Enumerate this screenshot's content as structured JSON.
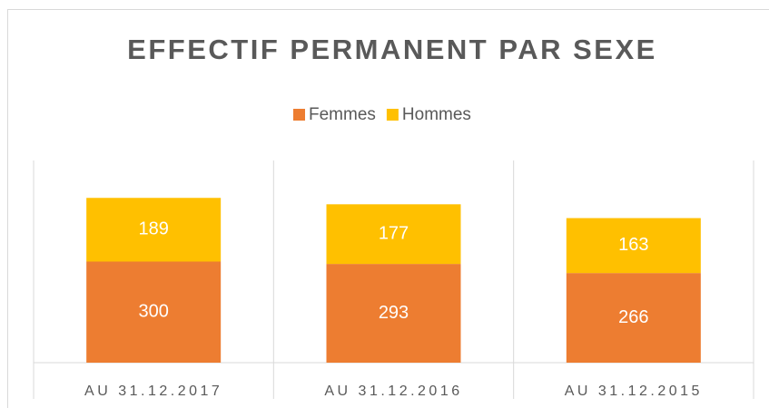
{
  "chart_data": {
    "type": "stacked_bar",
    "title": "EFFECTIF PERMANENT PAR SEXE",
    "categories": [
      "AU 31.12.2017",
      "AU 31.12.2016",
      "AU 31.12.2015"
    ],
    "series": [
      {
        "name": "Femmes",
        "color": "#ed7d31",
        "values": [
          300,
          293,
          266
        ]
      },
      {
        "name": "Hommes",
        "color": "#ffc000",
        "values": [
          189,
          177,
          163
        ]
      }
    ],
    "ylim": [
      0,
      600
    ],
    "legend": "top"
  }
}
